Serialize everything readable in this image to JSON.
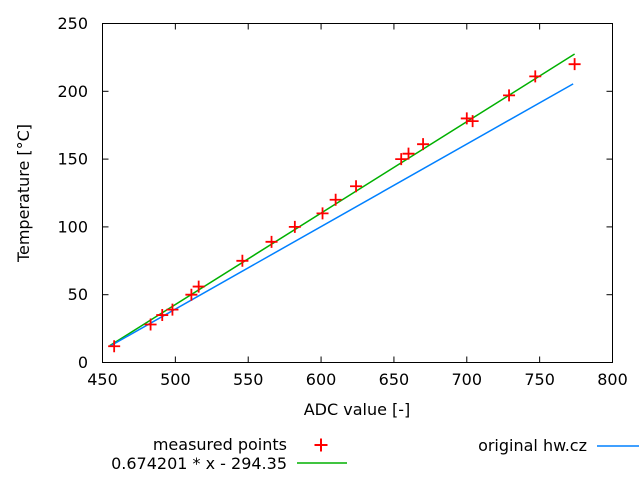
{
  "chart_data": {
    "type": "scatter",
    "title": "",
    "xlabel": "ADC value [-]",
    "ylabel": "Temperature [°C]",
    "xlim": [
      450,
      800
    ],
    "ylim": [
      0,
      250
    ],
    "xticks": [
      450,
      500,
      550,
      600,
      650,
      700,
      750,
      800
    ],
    "yticks": [
      0,
      50,
      100,
      150,
      200,
      250
    ],
    "grid": false,
    "legend_position": "below-plot-two-columns",
    "axis_color": "#000000",
    "series": [
      {
        "name": "measured points",
        "style": "points",
        "marker": "plus",
        "color": "#ff0000",
        "points": [
          [
            458,
            12
          ],
          [
            483,
            28
          ],
          [
            491,
            35
          ],
          [
            498,
            39
          ],
          [
            511,
            50
          ],
          [
            516,
            56
          ],
          [
            546,
            75
          ],
          [
            566,
            89
          ],
          [
            582,
            100
          ],
          [
            601,
            110
          ],
          [
            610,
            120
          ],
          [
            624,
            130
          ],
          [
            655,
            150
          ],
          [
            660,
            154
          ],
          [
            670,
            161
          ],
          [
            700,
            180
          ],
          [
            704,
            178
          ],
          [
            729,
            197
          ],
          [
            747,
            211
          ],
          [
            774,
            220
          ]
        ]
      },
      {
        "name": "0.674201 * x - 294.35",
        "style": "line",
        "color": "#00b000",
        "equation": {
          "slope": 0.674201,
          "intercept": -294.35
        },
        "x_range": [
          455,
          774
        ]
      },
      {
        "name": "original hw.cz",
        "style": "line",
        "color": "#0080ff",
        "points": [
          [
            455,
            12
          ],
          [
            773,
            205.5
          ]
        ]
      }
    ]
  }
}
